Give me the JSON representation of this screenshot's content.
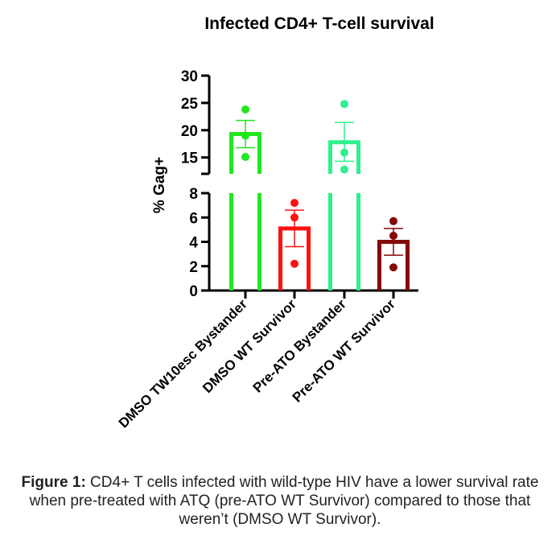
{
  "chart_data": {
    "type": "bar",
    "title": "Infected CD4+ T-cell survival",
    "ylabel": "% Gag+",
    "xlabel": "",
    "axis_break": {
      "lower_range": [
        0,
        8
      ],
      "upper_range": [
        12,
        30
      ]
    },
    "lower_ticks": [
      0,
      2,
      4,
      6,
      8
    ],
    "upper_ticks": [
      15,
      20,
      25,
      30
    ],
    "categories": [
      "DMSO TW10esc Bystander",
      "DMSO WT Survivor",
      "Pre-ATO Bystander",
      "Pre-ATO WT Survivor"
    ],
    "values": [
      19.3,
      5.1,
      17.8,
      4.0
    ],
    "sem_low": [
      16.8,
      3.6,
      14.3,
      2.9
    ],
    "sem_high": [
      21.8,
      6.6,
      21.4,
      5.1
    ],
    "points": [
      [
        23.8,
        19.0,
        15.1
      ],
      [
        7.2,
        6.0,
        2.2
      ],
      [
        24.8,
        15.9,
        12.8
      ],
      [
        5.7,
        4.5,
        1.9
      ]
    ],
    "colors": [
      "#22e61e",
      "#ff1010",
      "#2ef08c",
      "#850808"
    ],
    "grid": false,
    "legend": "none"
  },
  "caption": {
    "label": "Figure 1:",
    "text": " CD4+ T cells infected with wild-type HIV have a lower survival rate when pre-treated with ATQ (pre-ATO WT Survivor) compared to those that weren’t (DMSO WT Survivor)."
  }
}
